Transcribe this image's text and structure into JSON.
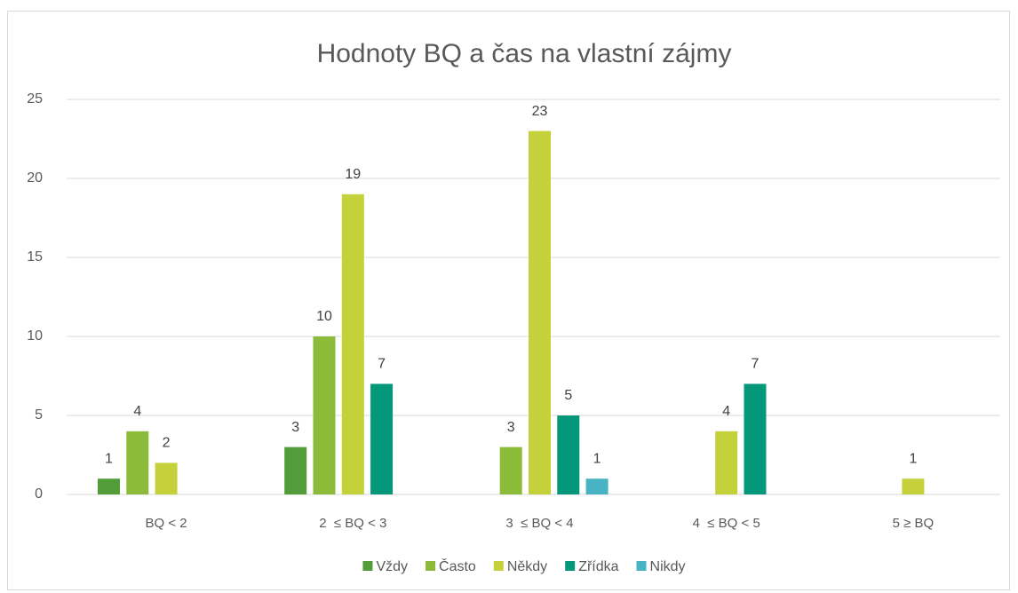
{
  "chart_data": {
    "type": "bar",
    "title": "Hodnoty BQ a čas na vlastní zájmy",
    "categories": [
      "BQ < 2",
      "2  ≤ BQ < 3",
      "3  ≤ BQ < 4",
      "4  ≤ BQ < 5",
      "5 ≥ BQ"
    ],
    "series": [
      {
        "name": "Vždy",
        "color": "#529c3a",
        "values": [
          1,
          3,
          null,
          null,
          null
        ]
      },
      {
        "name": "Často",
        "color": "#8bbb39",
        "values": [
          4,
          10,
          3,
          null,
          null
        ]
      },
      {
        "name": "Někdy",
        "color": "#c4d13b",
        "values": [
          2,
          19,
          23,
          4,
          1
        ]
      },
      {
        "name": "Zřídka",
        "color": "#05977a",
        "values": [
          null,
          7,
          5,
          7,
          null
        ]
      },
      {
        "name": "Nikdy",
        "color": "#48b4c3",
        "values": [
          null,
          null,
          1,
          null,
          null
        ]
      }
    ],
    "ylim": [
      0,
      25
    ],
    "yticks": [
      0,
      5,
      10,
      15,
      20,
      25
    ],
    "grid": true,
    "legend": "bottom"
  }
}
